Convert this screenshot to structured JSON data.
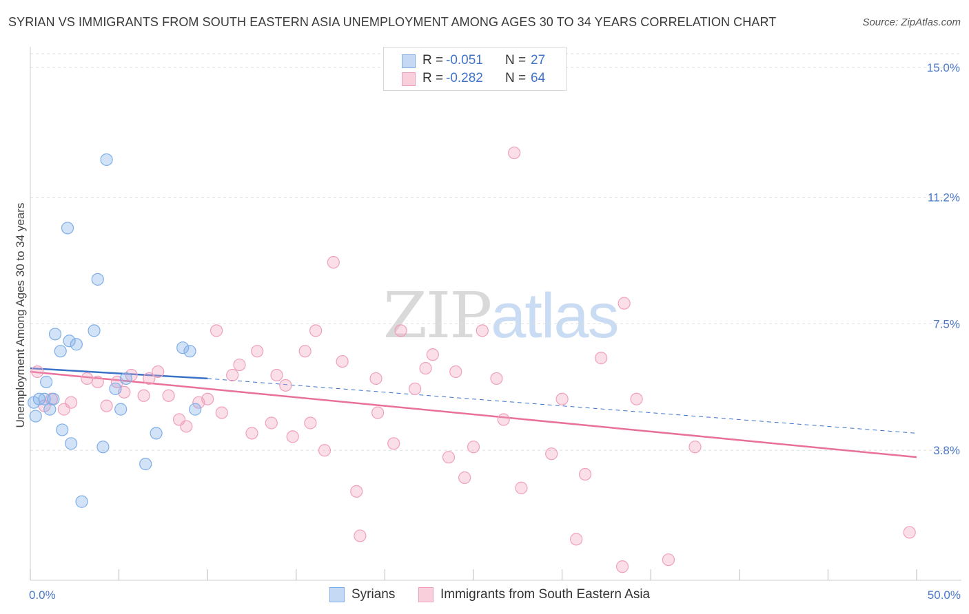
{
  "title": "SYRIAN VS IMMIGRANTS FROM SOUTH EASTERN ASIA UNEMPLOYMENT AMONG AGES 30 TO 34 YEARS CORRELATION CHART",
  "source": "Source: ZipAtlas.com",
  "watermark": {
    "zip": "ZIP",
    "atlas": "atlas"
  },
  "legend": {
    "rows": [
      {
        "r_label": "R =",
        "r_value": "-0.051",
        "n_label": "N =",
        "n_value": "27"
      },
      {
        "r_label": "R =",
        "r_value": "-0.282",
        "n_label": "N =",
        "n_value": "64"
      }
    ]
  },
  "bottom_legend": {
    "series_a": "Syrians",
    "series_b": "Immigrants from South Eastern Asia"
  },
  "chart_data": {
    "type": "scatter",
    "title": "SYRIAN VS IMMIGRANTS FROM SOUTH EASTERN ASIA UNEMPLOYMENT AMONG AGES 30 TO 34 YEARS CORRELATION CHART",
    "xlabel": "",
    "ylabel": "Unemployment Among Ages 30 to 34 years",
    "xlim": [
      0,
      50
    ],
    "ylim": [
      0,
      15.4
    ],
    "x_tick_labels": [
      "0.0%",
      "50.0%"
    ],
    "y_ticks": [
      3.8,
      7.5,
      11.2,
      15.0
    ],
    "y_tick_labels": [
      "3.8%",
      "7.5%",
      "11.2%",
      "15.0%"
    ],
    "grid": "horizontal dashed",
    "colors": {
      "syrians": "#7faee8",
      "immigrants": "#f0a0bc",
      "syrians_line": "#3a72c8",
      "immigrants_line": "#e8709a"
    },
    "series": [
      {
        "name": "Syrians",
        "points": [
          [
            0.2,
            5.2
          ],
          [
            0.3,
            4.8
          ],
          [
            0.5,
            5.3
          ],
          [
            0.8,
            5.3
          ],
          [
            0.9,
            5.8
          ],
          [
            1.1,
            5.0
          ],
          [
            1.3,
            5.3
          ],
          [
            1.4,
            7.2
          ],
          [
            1.7,
            6.7
          ],
          [
            1.8,
            4.4
          ],
          [
            2.1,
            10.3
          ],
          [
            2.2,
            7.0
          ],
          [
            2.3,
            4.0
          ],
          [
            2.6,
            6.9
          ],
          [
            2.9,
            2.3
          ],
          [
            3.6,
            7.3
          ],
          [
            3.8,
            8.8
          ],
          [
            4.1,
            3.9
          ],
          [
            4.3,
            12.3
          ],
          [
            4.8,
            5.6
          ],
          [
            5.1,
            5.0
          ],
          [
            5.4,
            5.9
          ],
          [
            7.1,
            4.3
          ],
          [
            6.5,
            3.4
          ],
          [
            8.6,
            6.8
          ],
          [
            9.0,
            6.7
          ],
          [
            9.3,
            5.0
          ]
        ]
      },
      {
        "name": "Immigrants from South Eastern Asia",
        "points": [
          [
            0.4,
            6.1
          ],
          [
            0.8,
            5.1
          ],
          [
            1.2,
            5.3
          ],
          [
            1.9,
            5.0
          ],
          [
            2.3,
            5.2
          ],
          [
            3.2,
            5.9
          ],
          [
            3.8,
            5.8
          ],
          [
            4.3,
            5.1
          ],
          [
            4.9,
            5.8
          ],
          [
            5.3,
            5.5
          ],
          [
            5.7,
            6.0
          ],
          [
            6.4,
            5.4
          ],
          [
            6.7,
            5.9
          ],
          [
            7.2,
            6.1
          ],
          [
            7.8,
            5.4
          ],
          [
            8.4,
            4.7
          ],
          [
            8.8,
            4.5
          ],
          [
            9.5,
            5.2
          ],
          [
            10.0,
            5.3
          ],
          [
            10.5,
            7.3
          ],
          [
            10.8,
            4.9
          ],
          [
            11.4,
            6.0
          ],
          [
            11.8,
            6.3
          ],
          [
            12.5,
            4.3
          ],
          [
            12.8,
            6.7
          ],
          [
            13.6,
            4.6
          ],
          [
            13.9,
            6.0
          ],
          [
            14.4,
            5.7
          ],
          [
            14.8,
            4.2
          ],
          [
            15.5,
            6.7
          ],
          [
            15.8,
            4.6
          ],
          [
            16.1,
            7.3
          ],
          [
            16.6,
            3.8
          ],
          [
            17.1,
            9.3
          ],
          [
            17.6,
            6.4
          ],
          [
            18.4,
            2.6
          ],
          [
            18.6,
            1.3
          ],
          [
            19.5,
            5.9
          ],
          [
            19.6,
            4.9
          ],
          [
            20.5,
            4.0
          ],
          [
            20.9,
            7.3
          ],
          [
            21.7,
            5.6
          ],
          [
            22.3,
            6.2
          ],
          [
            22.7,
            6.6
          ],
          [
            23.6,
            3.6
          ],
          [
            24.0,
            6.1
          ],
          [
            24.5,
            3.0
          ],
          [
            25.0,
            3.9
          ],
          [
            25.5,
            7.3
          ],
          [
            26.3,
            5.9
          ],
          [
            26.7,
            4.7
          ],
          [
            27.3,
            12.5
          ],
          [
            27.7,
            2.7
          ],
          [
            29.4,
            3.7
          ],
          [
            30.0,
            5.3
          ],
          [
            30.8,
            1.2
          ],
          [
            31.3,
            3.1
          ],
          [
            32.2,
            6.5
          ],
          [
            33.5,
            8.1
          ],
          [
            34.2,
            5.3
          ],
          [
            33.4,
            0.4
          ],
          [
            36.0,
            0.6
          ],
          [
            49.6,
            1.4
          ],
          [
            37.5,
            3.9
          ]
        ]
      }
    ],
    "trend_lines": [
      {
        "series": "Syrians",
        "solid": [
          [
            0,
            6.2
          ],
          [
            10,
            5.9
          ]
        ],
        "dashed": [
          [
            10,
            5.9
          ],
          [
            50,
            4.3
          ]
        ]
      },
      {
        "series": "Immigrants from South Eastern Asia",
        "solid": [
          [
            0,
            6.1
          ],
          [
            50,
            3.6
          ]
        ]
      }
    ]
  }
}
